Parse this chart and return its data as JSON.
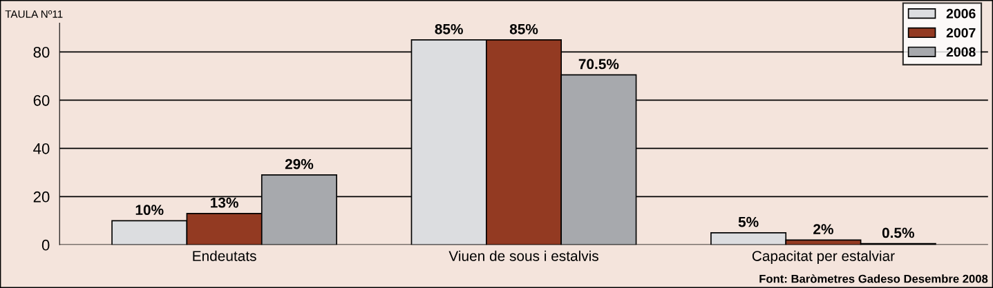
{
  "chart_data": {
    "type": "bar",
    "title": "TAULA Nº11",
    "categories": [
      "Endeutats",
      "Viuen de sous i estalvis",
      "Capacitat per estalviar"
    ],
    "series": [
      {
        "name": "2006",
        "color": "#dcdde0",
        "values": [
          10,
          85,
          5
        ],
        "value_labels": [
          "10%",
          "85%",
          "5%"
        ]
      },
      {
        "name": "2007",
        "color": "#933a22",
        "values": [
          13,
          85,
          2
        ],
        "value_labels": [
          "13%",
          "85%",
          "2%"
        ]
      },
      {
        "name": "2008",
        "color": "#a7a9ad",
        "values": [
          29,
          70.5,
          0.5
        ],
        "value_labels": [
          "29%",
          "70.5%",
          "0.5%"
        ]
      }
    ],
    "ylim": [
      0,
      92
    ],
    "yticks": [
      0,
      20,
      40,
      60,
      80
    ],
    "grid": "y",
    "legend": "top right",
    "annotations": [
      "Font: Baròmetres Gadeso Desembre 2008"
    ]
  }
}
